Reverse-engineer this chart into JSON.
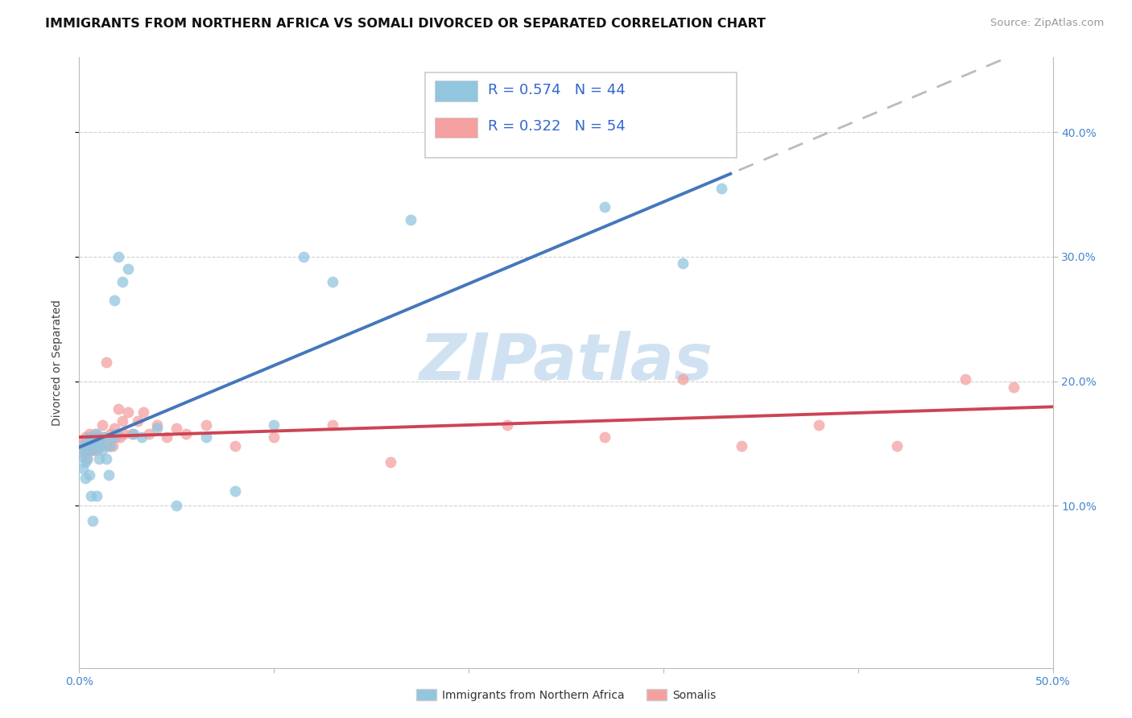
{
  "title": "IMMIGRANTS FROM NORTHERN AFRICA VS SOMALI DIVORCED OR SEPARATED CORRELATION CHART",
  "source": "Source: ZipAtlas.com",
  "ylabel": "Divorced or Separated",
  "xlim": [
    0.0,
    0.5
  ],
  "ylim": [
    -0.03,
    0.46
  ],
  "blue_R": "R = 0.574",
  "blue_N": "N = 44",
  "pink_R": "R = 0.322",
  "pink_N": "N = 54",
  "blue_scatter_color": "#92c5de",
  "pink_scatter_color": "#f4a0a0",
  "blue_line_color": "#4477bb",
  "pink_line_color": "#cc4455",
  "watermark_text": "ZIPatlas",
  "watermark_color": "#c8ddf0",
  "grid_color": "#cccccc",
  "blue_points_x": [
    0.001,
    0.002,
    0.002,
    0.003,
    0.003,
    0.003,
    0.004,
    0.004,
    0.005,
    0.005,
    0.006,
    0.006,
    0.007,
    0.007,
    0.008,
    0.009,
    0.009,
    0.01,
    0.01,
    0.011,
    0.012,
    0.013,
    0.014,
    0.015,
    0.016,
    0.017,
    0.018,
    0.019,
    0.02,
    0.022,
    0.025,
    0.028,
    0.032,
    0.04,
    0.05,
    0.065,
    0.08,
    0.1,
    0.115,
    0.13,
    0.17,
    0.27,
    0.31,
    0.33
  ],
  "blue_points_y": [
    0.14,
    0.148,
    0.13,
    0.145,
    0.135,
    0.122,
    0.15,
    0.138,
    0.155,
    0.125,
    0.152,
    0.108,
    0.145,
    0.088,
    0.148,
    0.158,
    0.108,
    0.152,
    0.138,
    0.148,
    0.145,
    0.155,
    0.138,
    0.125,
    0.148,
    0.155,
    0.265,
    0.158,
    0.3,
    0.28,
    0.29,
    0.158,
    0.155,
    0.162,
    0.1,
    0.155,
    0.112,
    0.165,
    0.3,
    0.28,
    0.33,
    0.34,
    0.295,
    0.355
  ],
  "pink_points_x": [
    0.001,
    0.002,
    0.002,
    0.003,
    0.003,
    0.004,
    0.004,
    0.005,
    0.005,
    0.006,
    0.006,
    0.007,
    0.007,
    0.008,
    0.008,
    0.009,
    0.009,
    0.01,
    0.011,
    0.011,
    0.012,
    0.013,
    0.014,
    0.015,
    0.016,
    0.017,
    0.018,
    0.019,
    0.02,
    0.021,
    0.022,
    0.023,
    0.025,
    0.027,
    0.03,
    0.033,
    0.036,
    0.04,
    0.045,
    0.05,
    0.055,
    0.065,
    0.08,
    0.1,
    0.13,
    0.16,
    0.22,
    0.27,
    0.31,
    0.34,
    0.38,
    0.42,
    0.455,
    0.48
  ],
  "pink_points_y": [
    0.148,
    0.152,
    0.142,
    0.155,
    0.145,
    0.15,
    0.138,
    0.158,
    0.145,
    0.152,
    0.145,
    0.155,
    0.145,
    0.158,
    0.148,
    0.155,
    0.145,
    0.152,
    0.155,
    0.148,
    0.165,
    0.155,
    0.215,
    0.148,
    0.158,
    0.148,
    0.162,
    0.155,
    0.178,
    0.155,
    0.168,
    0.158,
    0.175,
    0.158,
    0.168,
    0.175,
    0.158,
    0.165,
    0.155,
    0.162,
    0.158,
    0.165,
    0.148,
    0.155,
    0.165,
    0.135,
    0.165,
    0.155,
    0.202,
    0.148,
    0.165,
    0.148,
    0.202,
    0.195
  ],
  "title_fontsize": 11.5,
  "tick_fontsize": 10,
  "axis_label_fontsize": 10,
  "legend_fontsize": 13,
  "source_fontsize": 9.5
}
